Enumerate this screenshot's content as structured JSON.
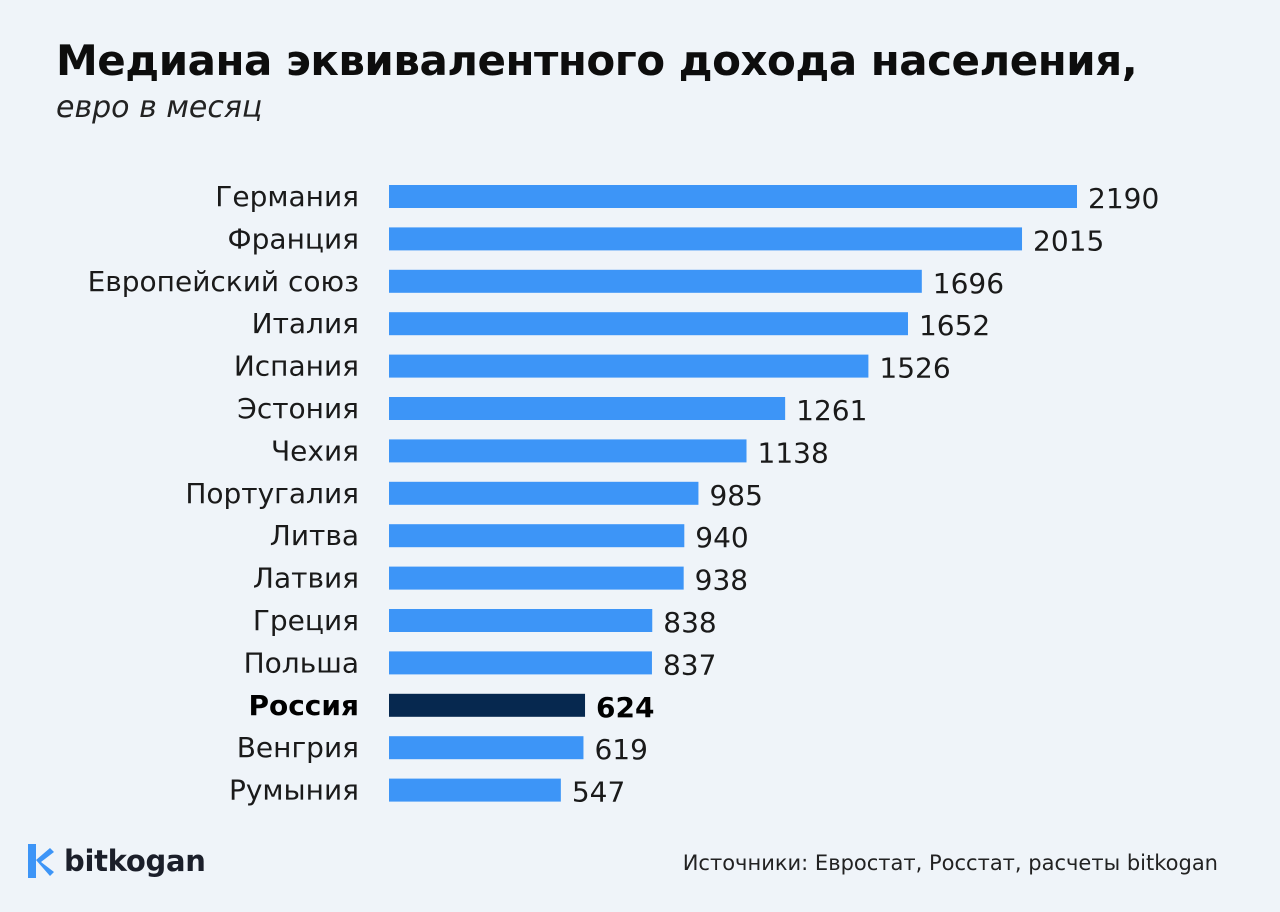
{
  "title": "Медиана эквивалентного дохода населения,",
  "subtitle": "евро в месяц",
  "chart_data": {
    "type": "bar",
    "orientation": "horizontal",
    "categories": [
      "Германия",
      "Франция",
      "Европейский союз",
      "Италия",
      "Испания",
      "Эстония",
      "Чехия",
      "Португалия",
      "Литва",
      "Латвия",
      "Греция",
      "Польша",
      "Россия",
      "Венгрия",
      "Румыния"
    ],
    "values": [
      2190,
      2015,
      1696,
      1652,
      1526,
      1261,
      1138,
      985,
      940,
      938,
      838,
      837,
      624,
      619,
      547
    ],
    "highlight": "Россия",
    "xlim": [
      0,
      2190
    ],
    "grid": false,
    "colors": {
      "bar": "#3d95f7",
      "highlight": "#06284f"
    }
  },
  "brand": {
    "name": "bitkogan",
    "icon": "bitkogan-logo-icon"
  },
  "source": "Источники: Евростат, Росстат, расчеты bitkogan"
}
